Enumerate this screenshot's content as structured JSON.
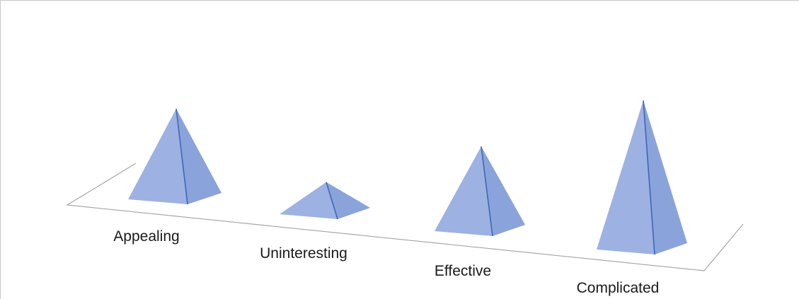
{
  "chart_data": {
    "type": "bar",
    "subtype": "3d-pyramid",
    "title": "",
    "xlabel": "",
    "ylabel": "",
    "categories": [
      "Appealing",
      "Uninteresting",
      "Effective",
      "Complicated"
    ],
    "values": [
      4.5,
      1.5,
      4.2,
      7.5
    ],
    "ylim": [
      0,
      8
    ],
    "grid": false,
    "legend": "none",
    "colors": {
      "face_light": "#9db2e2",
      "face_dark": "#8aa3da",
      "edge": "#3f66b8",
      "floor": "#a6a6a6"
    }
  }
}
